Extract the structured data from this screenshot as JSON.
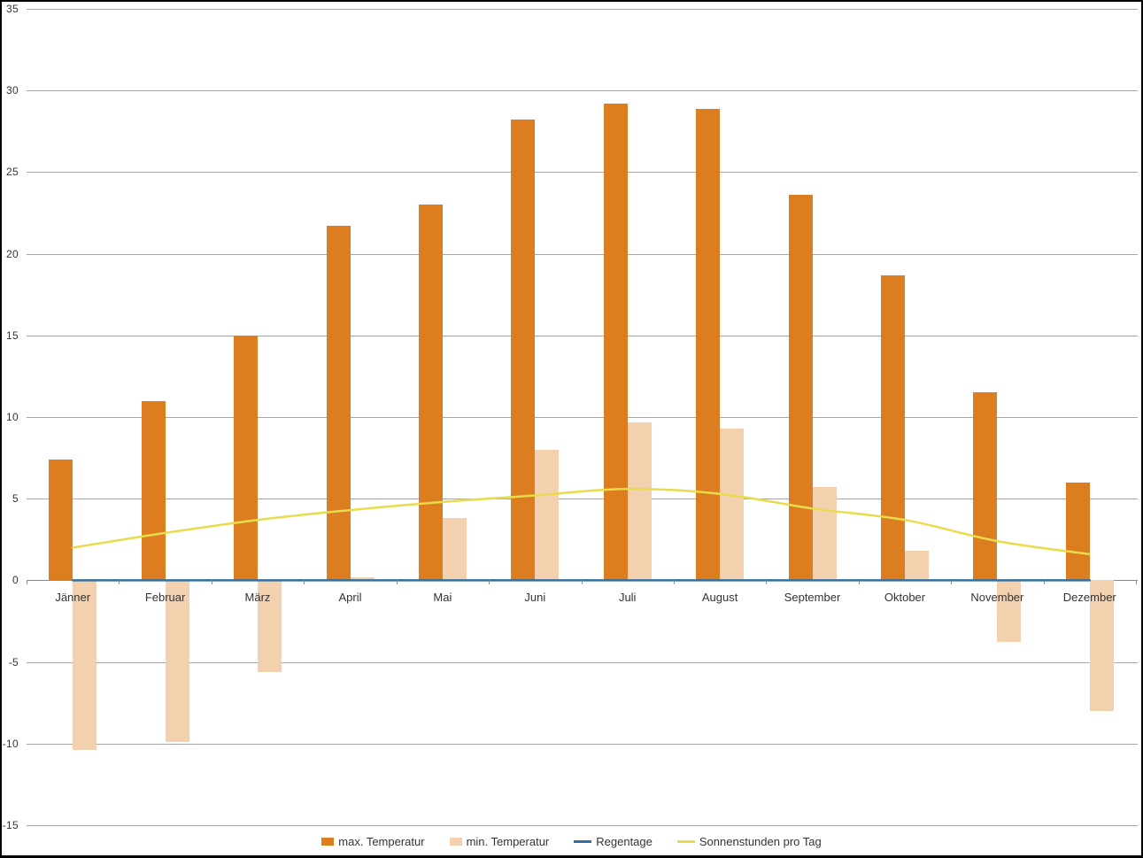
{
  "window": {
    "background": "#ffffff",
    "frame_border_color": "#000000"
  },
  "chart_data": {
    "type": "bar",
    "subtype": "combo bar+line climate chart",
    "title": "",
    "xlabel": "",
    "ylabel": "",
    "categories": [
      "Jänner",
      "Februar",
      "März",
      "April",
      "Mai",
      "Juni",
      "Juli",
      "August",
      "September",
      "Oktober",
      "November",
      "Dezember"
    ],
    "series": [
      {
        "name": "max. Temperatur",
        "type": "bar",
        "color": "#dc7d20",
        "values": [
          7.4,
          11.0,
          15.0,
          21.7,
          23.0,
          28.2,
          29.2,
          28.9,
          23.6,
          18.7,
          11.5,
          6.0
        ]
      },
      {
        "name": "min. Temperatur",
        "type": "bar",
        "color": "#f3d1ae",
        "values": [
          -10.4,
          -9.9,
          -5.6,
          0.2,
          3.8,
          8.0,
          9.7,
          9.3,
          5.7,
          1.8,
          -3.8,
          -8.0
        ]
      },
      {
        "name": "Regentage",
        "type": "line",
        "color": "#33709f",
        "values": [
          0,
          0,
          0,
          0,
          0,
          0,
          0,
          0,
          0,
          0,
          0,
          0
        ]
      },
      {
        "name": "Sonnenstunden pro Tag",
        "type": "line",
        "color": "#e8dc4c",
        "values": [
          2.0,
          2.9,
          3.7,
          4.3,
          4.8,
          5.2,
          5.6,
          5.3,
          4.4,
          3.7,
          2.4,
          1.6
        ]
      }
    ],
    "ylim": [
      -15,
      35
    ],
    "ytick_step": 5,
    "y_ticks": [
      35,
      30,
      25,
      20,
      15,
      10,
      5,
      0,
      -5,
      -10,
      -15
    ],
    "grid": true,
    "gridline_color": "#a6a6a6",
    "zero_axis_color": "#8a8a8a",
    "tick_color": "#8a8a8a",
    "label_color": "#333333",
    "legend_position": "bottom"
  }
}
